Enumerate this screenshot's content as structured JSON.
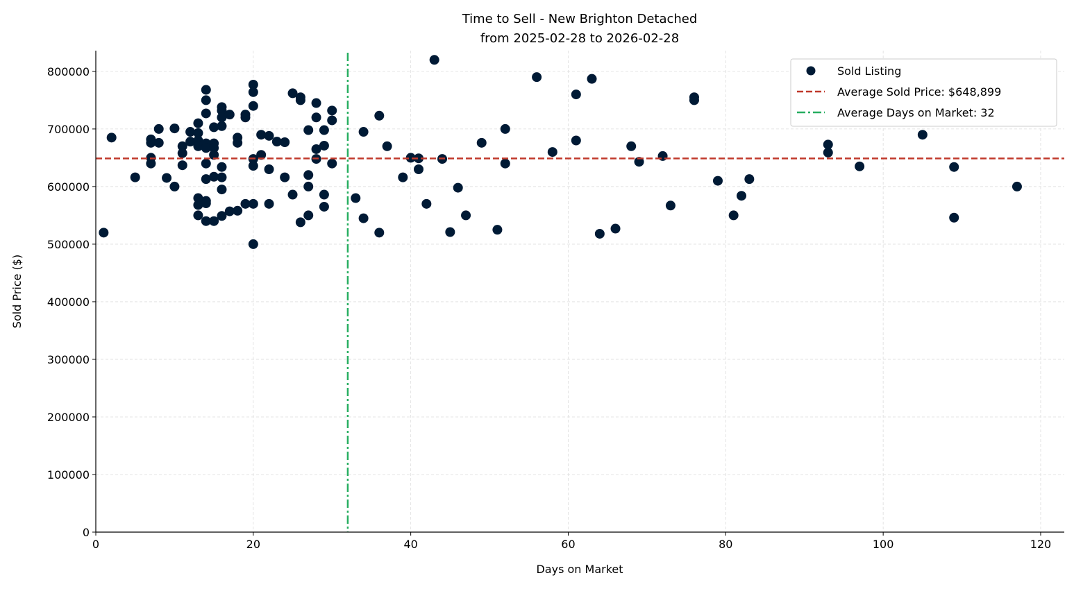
{
  "chart_data": {
    "type": "scatter",
    "title": "Time to Sell - New Brighton Detached",
    "subtitle": "from 2025-02-28 to 2026-02-28",
    "xlabel": "Days on Market",
    "ylabel": "Sold Price ($)",
    "xlim": [
      0,
      123
    ],
    "ylim": [
      0,
      836000
    ],
    "xticks": [
      0,
      20,
      40,
      60,
      80,
      100,
      120
    ],
    "yticks": [
      0,
      100000,
      200000,
      300000,
      400000,
      500000,
      600000,
      700000,
      800000
    ],
    "grid": true,
    "legend_position": "top-right",
    "legend": [
      {
        "label": "Sold Listing",
        "kind": "marker",
        "color": "#001a35"
      },
      {
        "label": "Average Sold Price: $648,899",
        "kind": "dashed",
        "color": "#c0392b"
      },
      {
        "label": "Average Days on Market: 32",
        "kind": "dashdot",
        "color": "#27ae60"
      }
    ],
    "reference_lines": {
      "avg_price": 648899,
      "avg_days": 32
    },
    "series": [
      {
        "name": "Sold Listing",
        "color": "#001a35",
        "points": [
          [
            1,
            520000
          ],
          [
            2,
            685000
          ],
          [
            5,
            616000
          ],
          [
            7,
            682000
          ],
          [
            7,
            676000
          ],
          [
            7,
            650000
          ],
          [
            7,
            640000
          ],
          [
            8,
            700000
          ],
          [
            8,
            676000
          ],
          [
            9,
            615000
          ],
          [
            10,
            701000
          ],
          [
            10,
            600000
          ],
          [
            11,
            670000
          ],
          [
            11,
            658000
          ],
          [
            11,
            637000
          ],
          [
            12,
            695000
          ],
          [
            12,
            678000
          ],
          [
            13,
            710000
          ],
          [
            13,
            693000
          ],
          [
            13,
            680000
          ],
          [
            13,
            670000
          ],
          [
            13,
            580000
          ],
          [
            13,
            568000
          ],
          [
            13,
            550000
          ],
          [
            14,
            768000
          ],
          [
            14,
            750000
          ],
          [
            14,
            727000
          ],
          [
            14,
            675000
          ],
          [
            14,
            667000
          ],
          [
            14,
            640000
          ],
          [
            14,
            613000
          ],
          [
            14,
            575000
          ],
          [
            14,
            571000
          ],
          [
            14,
            540000
          ],
          [
            15,
            703000
          ],
          [
            15,
            675000
          ],
          [
            15,
            667000
          ],
          [
            15,
            655000
          ],
          [
            15,
            617000
          ],
          [
            15,
            540000
          ],
          [
            16,
            738000
          ],
          [
            16,
            732000
          ],
          [
            16,
            720000
          ],
          [
            16,
            705000
          ],
          [
            16,
            634000
          ],
          [
            16,
            616000
          ],
          [
            16,
            595000
          ],
          [
            16,
            549000
          ],
          [
            17,
            725000
          ],
          [
            17,
            557000
          ],
          [
            18,
            685000
          ],
          [
            18,
            676000
          ],
          [
            18,
            558000
          ],
          [
            19,
            725000
          ],
          [
            19,
            720000
          ],
          [
            19,
            570000
          ],
          [
            20,
            777000
          ],
          [
            20,
            764000
          ],
          [
            20,
            740000
          ],
          [
            20,
            648000
          ],
          [
            20,
            636000
          ],
          [
            20,
            570000
          ],
          [
            20,
            500000
          ],
          [
            21,
            690000
          ],
          [
            21,
            655000
          ],
          [
            22,
            688000
          ],
          [
            22,
            630000
          ],
          [
            22,
            570000
          ],
          [
            23,
            678000
          ],
          [
            24,
            677000
          ],
          [
            24,
            616000
          ],
          [
            25,
            762000
          ],
          [
            25,
            586000
          ],
          [
            26,
            755000
          ],
          [
            26,
            750000
          ],
          [
            26,
            538000
          ],
          [
            27,
            698000
          ],
          [
            27,
            620000
          ],
          [
            27,
            600000
          ],
          [
            27,
            550000
          ],
          [
            28,
            745000
          ],
          [
            28,
            720000
          ],
          [
            28,
            665000
          ],
          [
            28,
            648000
          ],
          [
            29,
            698000
          ],
          [
            29,
            671000
          ],
          [
            29,
            586000
          ],
          [
            29,
            565000
          ],
          [
            30,
            732000
          ],
          [
            30,
            715000
          ],
          [
            30,
            640000
          ],
          [
            33,
            580000
          ],
          [
            34,
            695000
          ],
          [
            34,
            545000
          ],
          [
            36,
            723000
          ],
          [
            36,
            520000
          ],
          [
            37,
            670000
          ],
          [
            39,
            616000
          ],
          [
            40,
            650000
          ],
          [
            41,
            649000
          ],
          [
            41,
            630000
          ],
          [
            42,
            570000
          ],
          [
            43,
            820000
          ],
          [
            44,
            648000
          ],
          [
            45,
            521000
          ],
          [
            46,
            598000
          ],
          [
            47,
            550000
          ],
          [
            49,
            676000
          ],
          [
            51,
            525000
          ],
          [
            52,
            700000
          ],
          [
            52,
            640000
          ],
          [
            56,
            790000
          ],
          [
            58,
            660000
          ],
          [
            61,
            760000
          ],
          [
            61,
            680000
          ],
          [
            63,
            787000
          ],
          [
            64,
            518000
          ],
          [
            66,
            527000
          ],
          [
            68,
            670000
          ],
          [
            69,
            643000
          ],
          [
            72,
            653000
          ],
          [
            73,
            567000
          ],
          [
            76,
            755000
          ],
          [
            76,
            750000
          ],
          [
            79,
            610000
          ],
          [
            81,
            550000
          ],
          [
            82,
            584000
          ],
          [
            83,
            613000
          ],
          [
            93,
            673000
          ],
          [
            93,
            659000
          ],
          [
            97,
            635000
          ],
          [
            105,
            690000
          ],
          [
            109,
            634000
          ],
          [
            109,
            546000
          ],
          [
            117,
            600000
          ]
        ]
      }
    ]
  }
}
